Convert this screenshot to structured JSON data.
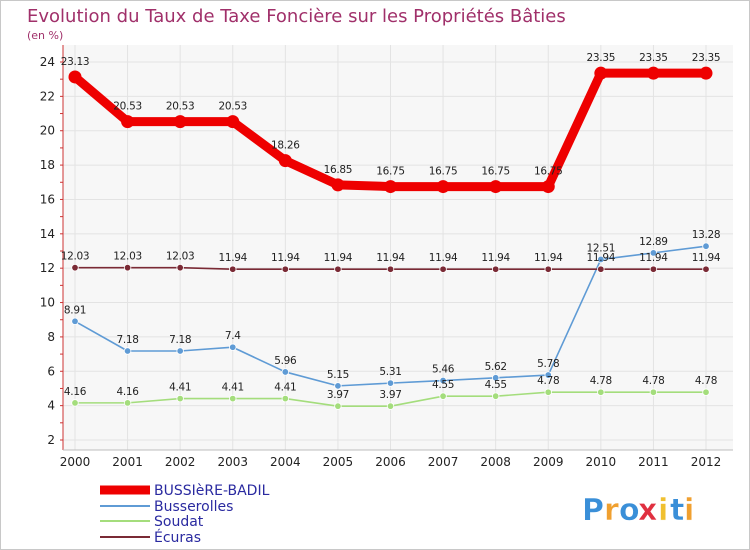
{
  "chart_data": {
    "type": "line",
    "title": "Evolution du Taux de Taxe Foncière sur les Propriétés Bâties",
    "subtitle": "(en %)",
    "x": [
      "2000",
      "2001",
      "2002",
      "2003",
      "2004",
      "2005",
      "2006",
      "2007",
      "2008",
      "2009",
      "2010",
      "2011",
      "2012"
    ],
    "ylim": [
      2,
      24
    ],
    "yticks": [
      "2",
      "4",
      "6",
      "8",
      "10",
      "12",
      "14",
      "16",
      "18",
      "20",
      "22",
      "24"
    ],
    "grid": true,
    "legend_position": "bottom-left",
    "series": [
      {
        "name": "BUSSIèRE-BADIL",
        "color": "#ee0000",
        "values": [
          23.13,
          20.53,
          20.53,
          20.53,
          18.26,
          16.85,
          16.75,
          16.75,
          16.75,
          16.75,
          23.35,
          23.35,
          23.35
        ],
        "labels": [
          "23.13",
          "20.53",
          "20.53",
          "20.53",
          "18.26",
          "16.85",
          "16.75",
          "16.75",
          "16.75",
          "16.75",
          "23.35",
          "23.35",
          "23.35"
        ]
      },
      {
        "name": "Busserolles",
        "color": "#5f9bd5",
        "values": [
          8.91,
          7.18,
          7.18,
          7.4,
          5.96,
          5.15,
          5.31,
          5.46,
          5.62,
          5.78,
          12.51,
          12.89,
          13.28
        ],
        "labels": [
          "8.91",
          "7.18",
          "7.18",
          "7.4",
          "5.96",
          "5.15",
          "5.31",
          "5.46",
          "5.62",
          "5.78",
          "12.51",
          "12.89",
          "13.28"
        ]
      },
      {
        "name": "Soudat",
        "color": "#a4dd7c",
        "values": [
          4.16,
          4.16,
          4.41,
          4.41,
          4.41,
          3.97,
          3.97,
          4.55,
          4.55,
          4.78,
          4.78,
          4.78,
          4.78
        ],
        "labels": [
          "4.16",
          "4.16",
          "4.41",
          "4.41",
          "4.41",
          "3.97",
          "3.97",
          "4.55",
          "4.55",
          "4.78",
          "4.78",
          "4.78",
          "4.78"
        ]
      },
      {
        "name": "Écuras",
        "color": "#7a2a35",
        "values": [
          12.03,
          12.03,
          12.03,
          11.94,
          11.94,
          11.94,
          11.94,
          11.94,
          11.94,
          11.94,
          11.94,
          11.94,
          11.94
        ],
        "labels": [
          "12.03",
          "12.03",
          "12.03",
          "11.94",
          "11.94",
          "11.94",
          "11.94",
          "11.94",
          "11.94",
          "11.94",
          "11.94",
          "11.94",
          "11.94"
        ]
      }
    ]
  },
  "brand": {
    "letters": [
      "P",
      "r",
      "o",
      "x",
      "i",
      "t",
      "i"
    ],
    "colors": [
      "#3a8fd8",
      "#f0a030",
      "#3a8fd8",
      "#e03040",
      "#f0c030",
      "#3a8fd8",
      "#f0a030"
    ]
  }
}
